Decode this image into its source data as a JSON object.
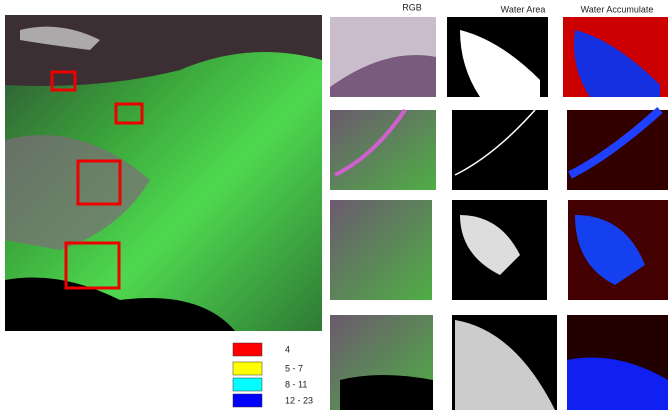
{
  "header": {
    "columns": [
      "RGB",
      "Water Area",
      "Water Accumulate"
    ]
  },
  "legend": {
    "items": [
      {
        "label": "4",
        "color": "#ff0000"
      },
      {
        "label": "5 - 7",
        "color": "#ffff00"
      },
      {
        "label": "8 - 11",
        "color": "#00ffff"
      },
      {
        "label": "12 - 23",
        "color": "#0000ff"
      }
    ]
  }
}
